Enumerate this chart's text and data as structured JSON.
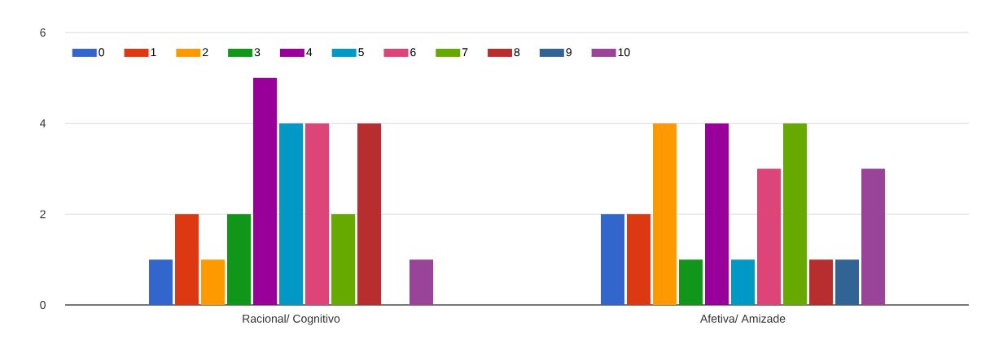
{
  "chart_data": {
    "type": "bar",
    "categories": [
      "Racional/ Cognitivo",
      "Afetiva/ Amizade"
    ],
    "series": [
      {
        "name": "0",
        "color": "#3366cc",
        "values": [
          1,
          2
        ]
      },
      {
        "name": "1",
        "color": "#dc3912",
        "values": [
          2,
          2
        ]
      },
      {
        "name": "2",
        "color": "#ff9900",
        "values": [
          1,
          4
        ]
      },
      {
        "name": "3",
        "color": "#109618",
        "values": [
          2,
          1
        ]
      },
      {
        "name": "4",
        "color": "#990099",
        "values": [
          5,
          4
        ]
      },
      {
        "name": "5",
        "color": "#0099c6",
        "values": [
          4,
          1
        ]
      },
      {
        "name": "6",
        "color": "#dd4477",
        "values": [
          4,
          3
        ]
      },
      {
        "name": "7",
        "color": "#66aa00",
        "values": [
          2,
          4
        ]
      },
      {
        "name": "8",
        "color": "#b82e2e",
        "values": [
          4,
          1
        ]
      },
      {
        "name": "9",
        "color": "#316395",
        "values": [
          0,
          1
        ]
      },
      {
        "name": "10",
        "color": "#994499",
        "values": [
          1,
          3
        ]
      }
    ],
    "ylim": [
      0,
      6
    ],
    "yticks": [
      0,
      2,
      4,
      6
    ],
    "grid": "y",
    "legend": "top left"
  }
}
